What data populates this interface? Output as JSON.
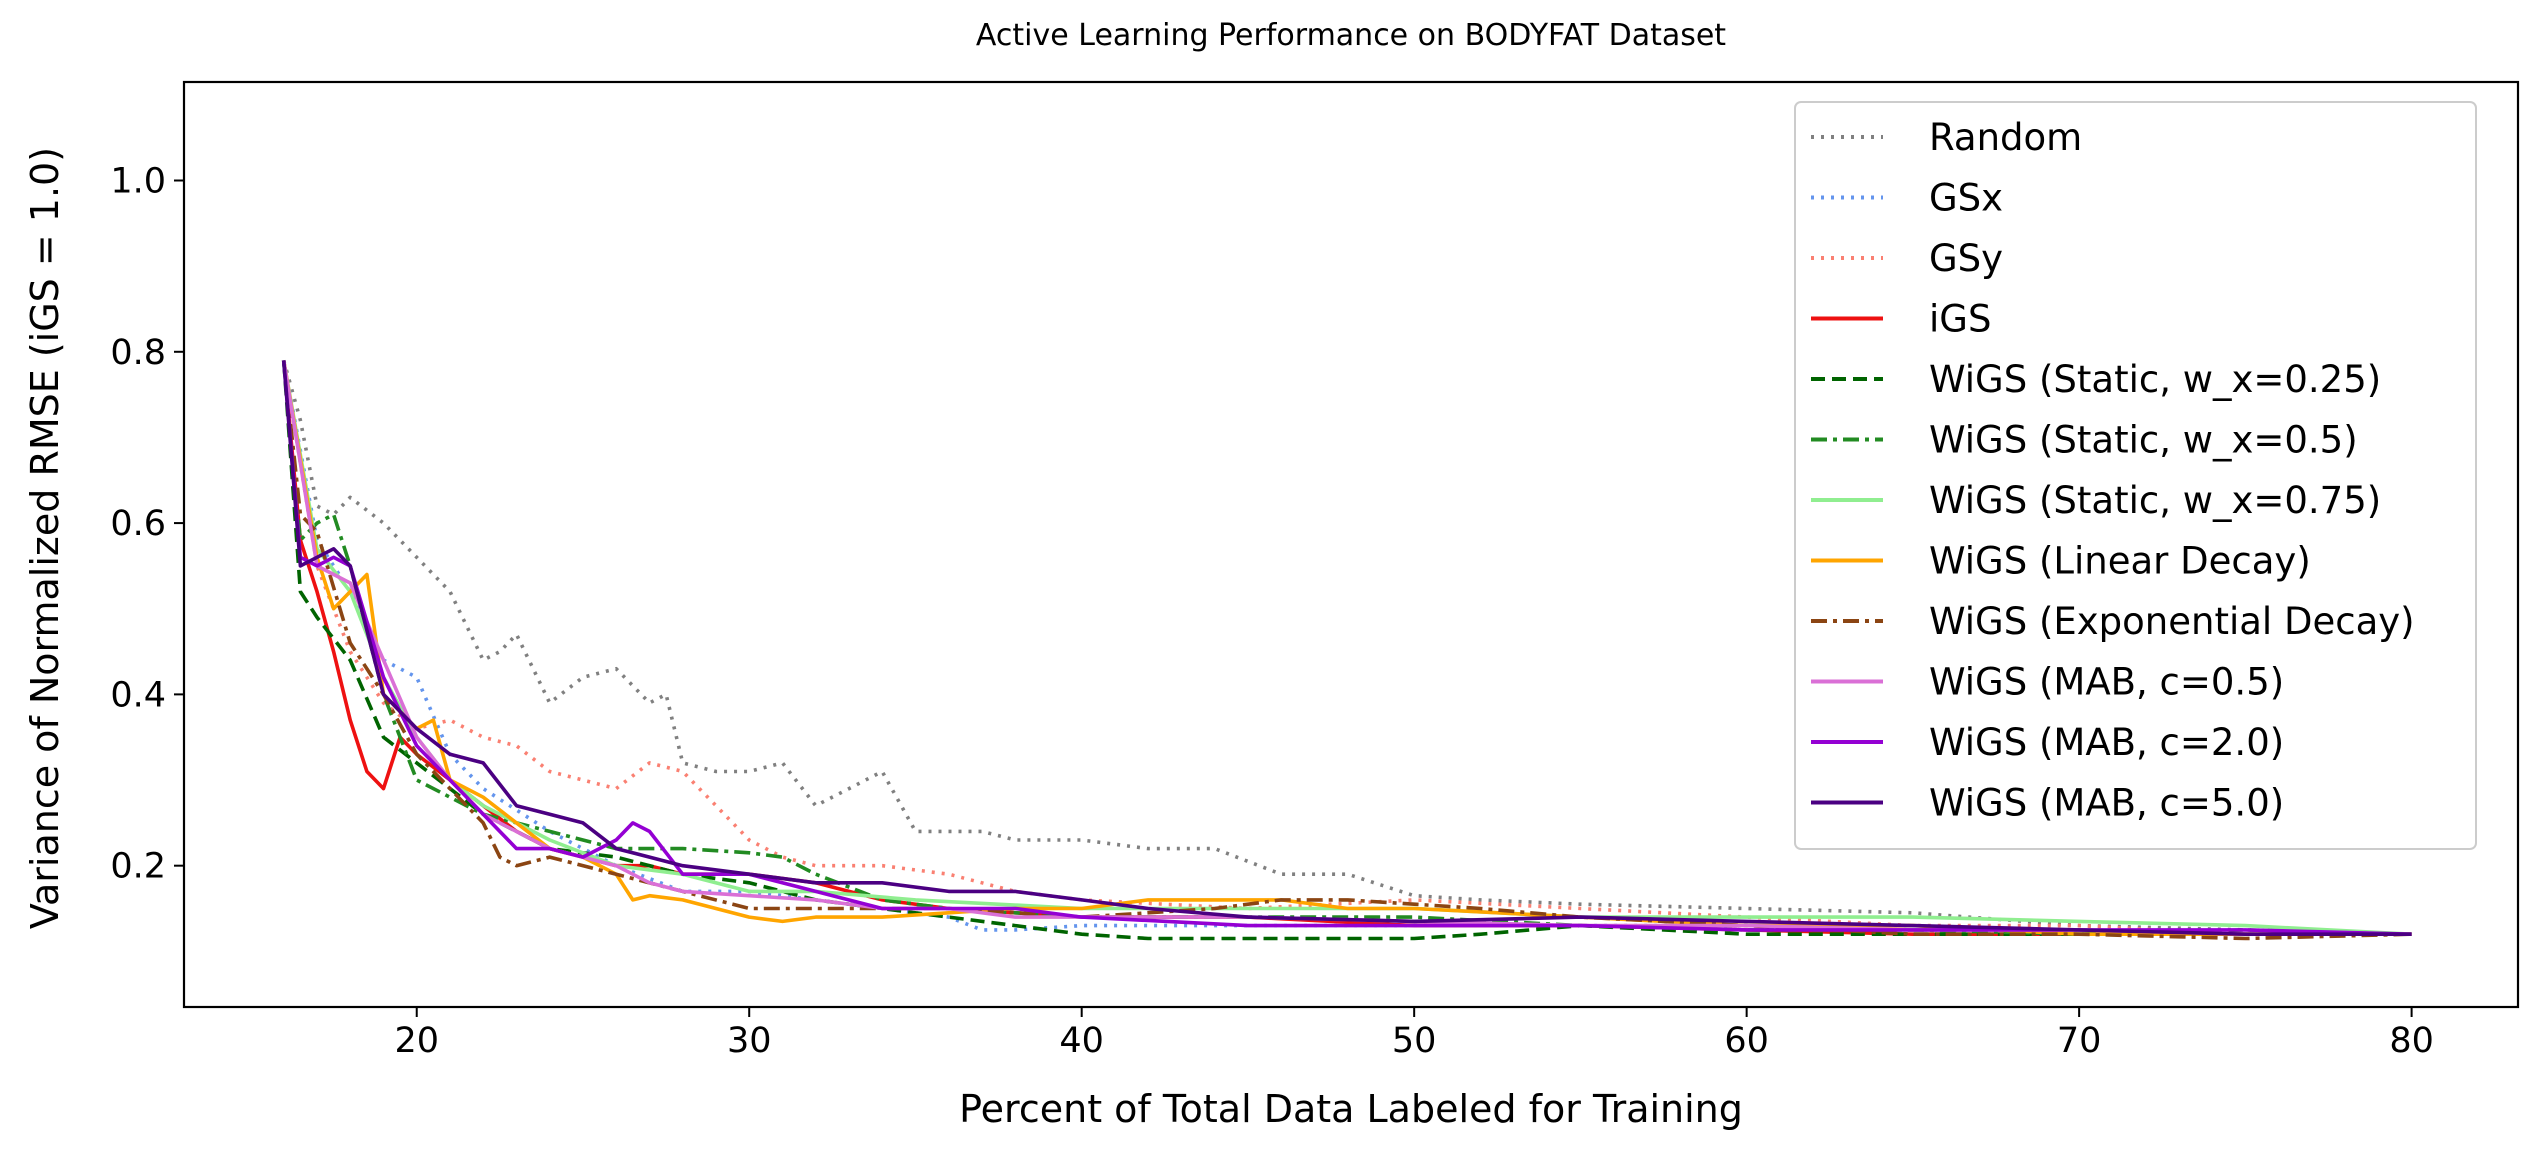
{
  "chart_data": {
    "type": "line",
    "title": "Active Learning Performance on BODYFAT Dataset",
    "xlabel": "Percent of Total Data Labeled for Training",
    "ylabel": "Variance of Normalized RMSE (iGS = 1.0)",
    "xlim": [
      13,
      83.2
    ],
    "ylim": [
      0.035,
      1.115
    ],
    "xticks": [
      20,
      30,
      40,
      50,
      60,
      70,
      80
    ],
    "yticks": [
      0.2,
      0.4,
      0.6,
      0.8,
      1.0
    ],
    "xtick_labels": [
      "20",
      "30",
      "40",
      "50",
      "60",
      "70",
      "80"
    ],
    "ytick_labels": [
      "0.2",
      "0.4",
      "0.6",
      "0.8",
      "1.0"
    ],
    "grid": false,
    "legend_position": "top-right",
    "series": [
      {
        "name": "Random",
        "color": "#808080",
        "dash": "dotted",
        "x": [
          16,
          16.5,
          17,
          17.5,
          18,
          19,
          20,
          21,
          22,
          22.5,
          23,
          24,
          25,
          26,
          27,
          27.5,
          28,
          29,
          30,
          31,
          32,
          33,
          34,
          35,
          36,
          37,
          38,
          40,
          42,
          44,
          46,
          48,
          50,
          52,
          55,
          60,
          65,
          70,
          75,
          80
        ],
        "y": [
          0.79,
          0.72,
          0.62,
          0.61,
          0.63,
          0.6,
          0.56,
          0.52,
          0.44,
          0.45,
          0.47,
          0.39,
          0.42,
          0.43,
          0.39,
          0.4,
          0.32,
          0.31,
          0.31,
          0.32,
          0.27,
          0.29,
          0.31,
          0.24,
          0.24,
          0.24,
          0.23,
          0.23,
          0.22,
          0.22,
          0.19,
          0.19,
          0.165,
          0.16,
          0.155,
          0.15,
          0.145,
          0.13,
          0.125,
          0.12
        ]
      },
      {
        "name": "GSx",
        "color": "#6495ED",
        "dash": "dotted",
        "x": [
          16,
          17,
          18,
          19,
          20,
          21,
          22,
          24,
          26,
          28,
          30,
          32,
          34,
          36,
          37,
          38,
          40,
          42,
          45,
          50,
          55,
          60,
          65,
          70,
          75,
          80
        ],
        "y": [
          0.79,
          0.58,
          0.52,
          0.44,
          0.42,
          0.33,
          0.29,
          0.24,
          0.2,
          0.17,
          0.17,
          0.16,
          0.15,
          0.14,
          0.125,
          0.125,
          0.13,
          0.13,
          0.13,
          0.13,
          0.13,
          0.13,
          0.125,
          0.125,
          0.12,
          0.12
        ]
      },
      {
        "name": "GSy",
        "color": "#FA8072",
        "dash": "dotted",
        "x": [
          16,
          17,
          18,
          19,
          20,
          21,
          22,
          23,
          24,
          25,
          26,
          27,
          28,
          29,
          30,
          31,
          32,
          34,
          36,
          38,
          40,
          45,
          50,
          55,
          60,
          65,
          70,
          75,
          80
        ],
        "y": [
          0.79,
          0.55,
          0.45,
          0.39,
          0.36,
          0.37,
          0.35,
          0.34,
          0.31,
          0.3,
          0.29,
          0.32,
          0.31,
          0.27,
          0.23,
          0.21,
          0.2,
          0.2,
          0.19,
          0.17,
          0.16,
          0.15,
          0.16,
          0.15,
          0.14,
          0.13,
          0.13,
          0.12,
          0.12
        ]
      },
      {
        "name": "iGS",
        "color": "#EE1111",
        "dash": "solid",
        "x": [
          16,
          16.5,
          17,
          17.5,
          18,
          18.5,
          19,
          19.5,
          20,
          21,
          22,
          23,
          24,
          25,
          26,
          27,
          28,
          30,
          32,
          34,
          36,
          40,
          45,
          50,
          55,
          60,
          65,
          70,
          75,
          80
        ],
        "y": [
          0.79,
          0.58,
          0.52,
          0.45,
          0.37,
          0.31,
          0.29,
          0.35,
          0.33,
          0.3,
          0.27,
          0.24,
          0.22,
          0.21,
          0.2,
          0.2,
          0.19,
          0.19,
          0.18,
          0.16,
          0.15,
          0.14,
          0.14,
          0.13,
          0.13,
          0.125,
          0.12,
          0.12,
          0.12,
          0.12
        ]
      },
      {
        "name": "WiGS (Static, w_x=0.25)",
        "color": "#006400",
        "dash": "dashed",
        "x": [
          16,
          16.5,
          17,
          18,
          19,
          20,
          21,
          22,
          24,
          26,
          28,
          30,
          32,
          34,
          36,
          38,
          40,
          42,
          45,
          48,
          50,
          52,
          55,
          60,
          65,
          70,
          75,
          80
        ],
        "y": [
          0.79,
          0.52,
          0.49,
          0.44,
          0.35,
          0.32,
          0.29,
          0.26,
          0.22,
          0.21,
          0.19,
          0.18,
          0.16,
          0.15,
          0.14,
          0.13,
          0.12,
          0.115,
          0.115,
          0.115,
          0.115,
          0.12,
          0.13,
          0.12,
          0.12,
          0.12,
          0.125,
          0.12
        ]
      },
      {
        "name": "WiGS (Static, w_x=0.5)",
        "color": "#228B22",
        "dash": "dashdot",
        "x": [
          16,
          16.5,
          17,
          17.5,
          18,
          19,
          20,
          21,
          22,
          24,
          26,
          28,
          30,
          31,
          32,
          34,
          36,
          40,
          45,
          50,
          55,
          60,
          65,
          70,
          75,
          80
        ],
        "y": [
          0.79,
          0.58,
          0.6,
          0.61,
          0.55,
          0.4,
          0.3,
          0.28,
          0.26,
          0.24,
          0.22,
          0.22,
          0.215,
          0.21,
          0.19,
          0.16,
          0.15,
          0.14,
          0.14,
          0.14,
          0.13,
          0.125,
          0.125,
          0.12,
          0.12,
          0.12
        ]
      },
      {
        "name": "WiGS (Static, w_x=0.75)",
        "color": "#90EE90",
        "dash": "solid",
        "x": [
          16,
          17,
          18,
          19,
          20,
          21,
          22,
          24,
          26,
          28,
          30,
          32,
          35,
          40,
          45,
          50,
          55,
          60,
          65,
          70,
          75,
          80
        ],
        "y": [
          0.79,
          0.57,
          0.52,
          0.42,
          0.35,
          0.3,
          0.27,
          0.23,
          0.2,
          0.19,
          0.17,
          0.17,
          0.16,
          0.15,
          0.15,
          0.15,
          0.14,
          0.14,
          0.14,
          0.135,
          0.13,
          0.12
        ]
      },
      {
        "name": "WiGS (Linear Decay)",
        "color": "#FFA500",
        "dash": "solid",
        "x": [
          16,
          17,
          17.5,
          18,
          18.5,
          19,
          20,
          20.5,
          21,
          22,
          23,
          24,
          25,
          26,
          26.5,
          27,
          28,
          30,
          31,
          32,
          34,
          36,
          38,
          40,
          42,
          44,
          46,
          48,
          50,
          55,
          60,
          65,
          70,
          75,
          80
        ],
        "y": [
          0.79,
          0.56,
          0.5,
          0.52,
          0.54,
          0.4,
          0.36,
          0.37,
          0.3,
          0.28,
          0.25,
          0.22,
          0.21,
          0.19,
          0.16,
          0.165,
          0.16,
          0.14,
          0.135,
          0.14,
          0.14,
          0.145,
          0.15,
          0.15,
          0.16,
          0.16,
          0.16,
          0.15,
          0.15,
          0.14,
          0.13,
          0.13,
          0.12,
          0.12,
          0.12
        ]
      },
      {
        "name": "WiGS (Exponential Decay)",
        "color": "#8B4513",
        "dash": "dashdot",
        "x": [
          16,
          16.5,
          17,
          18,
          19,
          20,
          21,
          22,
          22.5,
          23,
          24,
          26,
          28,
          30,
          32,
          34,
          36,
          40,
          44,
          46,
          48,
          50,
          52,
          55,
          60,
          65,
          70,
          75,
          80
        ],
        "y": [
          0.79,
          0.61,
          0.59,
          0.46,
          0.4,
          0.33,
          0.29,
          0.25,
          0.21,
          0.2,
          0.21,
          0.19,
          0.17,
          0.15,
          0.15,
          0.15,
          0.15,
          0.14,
          0.15,
          0.16,
          0.16,
          0.155,
          0.15,
          0.14,
          0.13,
          0.12,
          0.12,
          0.115,
          0.12
        ]
      },
      {
        "name": "WiGS (MAB, c=0.5)",
        "color": "#DA70D6",
        "dash": "solid",
        "x": [
          16,
          17,
          18,
          19,
          20,
          21,
          22,
          24,
          26,
          27,
          28,
          30,
          32,
          34,
          36,
          38,
          40,
          45,
          50,
          55,
          60,
          65,
          70,
          75,
          80
        ],
        "y": [
          0.79,
          0.55,
          0.53,
          0.44,
          0.35,
          0.3,
          0.26,
          0.22,
          0.2,
          0.18,
          0.17,
          0.165,
          0.16,
          0.15,
          0.15,
          0.14,
          0.14,
          0.14,
          0.135,
          0.13,
          0.13,
          0.125,
          0.125,
          0.12,
          0.12
        ]
      },
      {
        "name": "WiGS (MAB, c=2.0)",
        "color": "#9400D3",
        "dash": "solid",
        "x": [
          16,
          16.5,
          17,
          17.5,
          18,
          19,
          20,
          21,
          22,
          23,
          24,
          25,
          26,
          26.5,
          27,
          28,
          30,
          32,
          34,
          36,
          38,
          40,
          45,
          50,
          55,
          60,
          65,
          70,
          75,
          80
        ],
        "y": [
          0.79,
          0.56,
          0.55,
          0.56,
          0.55,
          0.42,
          0.34,
          0.3,
          0.26,
          0.22,
          0.22,
          0.21,
          0.23,
          0.25,
          0.24,
          0.19,
          0.19,
          0.17,
          0.15,
          0.15,
          0.15,
          0.14,
          0.13,
          0.13,
          0.13,
          0.125,
          0.125,
          0.125,
          0.125,
          0.12
        ]
      },
      {
        "name": "WiGS (MAB, c=5.0)",
        "color": "#4B0082",
        "dash": "solid",
        "x": [
          16,
          16.5,
          17,
          17.5,
          18,
          19,
          20,
          21,
          22,
          23,
          24,
          25,
          26,
          27,
          28,
          30,
          32,
          34,
          36,
          38,
          40,
          42,
          45,
          50,
          55,
          60,
          65,
          70,
          75,
          80
        ],
        "y": [
          0.79,
          0.55,
          0.56,
          0.57,
          0.55,
          0.4,
          0.36,
          0.33,
          0.32,
          0.27,
          0.26,
          0.25,
          0.22,
          0.21,
          0.2,
          0.19,
          0.18,
          0.18,
          0.17,
          0.17,
          0.16,
          0.15,
          0.14,
          0.135,
          0.14,
          0.135,
          0.13,
          0.125,
          0.12,
          0.12
        ]
      }
    ]
  }
}
